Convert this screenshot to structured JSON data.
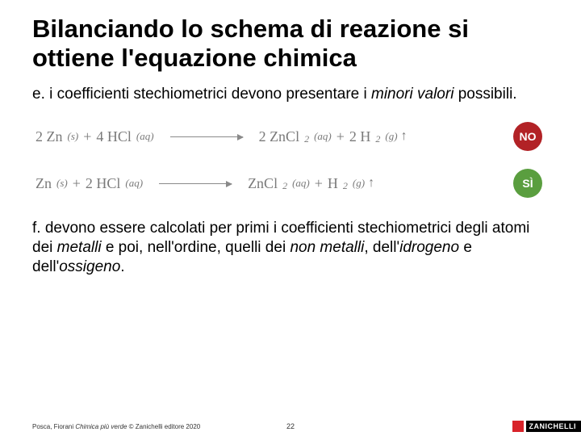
{
  "title": "Bilanciando lo schema di reazione si ottiene l'equazione chimica",
  "pointE": {
    "letter": "e.",
    "text_before": " i coefficienti stechiometrici devono presentare i ",
    "italic1": "minori valori",
    "text_after": " possibili."
  },
  "equations": {
    "row1": {
      "lhs_a": "2 Zn",
      "lhs_a_state": "(s)",
      "plus1": "+",
      "lhs_b": "4 HCl",
      "lhs_b_state": "(aq)",
      "rhs_a": "2 ZnCl",
      "rhs_a_sub": "2",
      "rhs_a_state": "(aq)",
      "plus2": "+",
      "rhs_b": "2 H",
      "rhs_b_sub": "2",
      "rhs_b_state": "(g)",
      "badge": "NO",
      "badge_color": "#b22226"
    },
    "row2": {
      "lhs_a": "Zn",
      "lhs_a_state": "(s)",
      "plus1": "+",
      "lhs_b": "2 HCl",
      "lhs_b_state": "(aq)",
      "rhs_a": "ZnCl",
      "rhs_a_sub": "2",
      "rhs_a_state": "(aq)",
      "plus2": "+",
      "rhs_b": "H",
      "rhs_b_sub": "2",
      "rhs_b_state": "(g)",
      "badge": "SÌ",
      "badge_color": "#5a9e3f"
    }
  },
  "pointF": {
    "letter": "f.",
    "t1": " devono essere calcolati per primi i coefficienti stechiometrici degli atomi dei ",
    "i1": "metalli",
    "t2": " e poi, nell'ordine, quelli dei ",
    "i2": "non metalli",
    "t3": ", dell'",
    "i3": "idrogeno",
    "t4": " e dell'",
    "i4": "ossigeno",
    "t5": "."
  },
  "footer": {
    "author": "Posca, Fiorani ",
    "book": "Chimica più verde",
    "copyright": " © Zanichelli editore 2020",
    "page": "22",
    "publisher": "ZANICHELLI"
  }
}
